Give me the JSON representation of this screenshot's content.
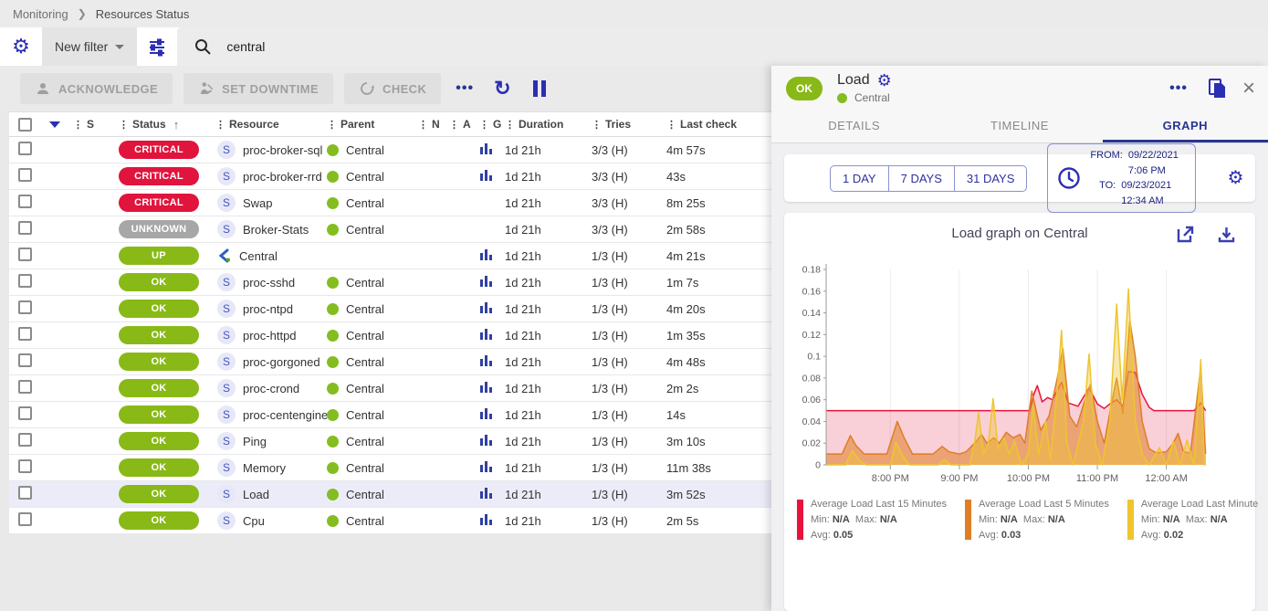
{
  "breadcrumb": {
    "items": [
      "Monitoring",
      "Resources Status"
    ]
  },
  "filter_bar": {
    "new_filter_label": "New filter",
    "search_value": "central",
    "icons": [
      "settings-gear-icon",
      "tune-filter-icon",
      "search-icon"
    ]
  },
  "toolbar": {
    "buttons": [
      {
        "label": "ACKNOWLEDGE",
        "icon": "person-icon"
      },
      {
        "label": "SET DOWNTIME",
        "icon": "downtime-worker-icon"
      },
      {
        "label": "CHECK",
        "icon": "recheck-icon"
      }
    ],
    "more_label": "•••",
    "icons": [
      "more-icon",
      "refresh-icon",
      "pause-icon"
    ]
  },
  "table": {
    "columns": [
      "S",
      "Status",
      "Resource",
      "Parent",
      "N",
      "A",
      "G",
      "Duration",
      "Tries",
      "Last check"
    ],
    "sort_column": "Status",
    "rows": [
      {
        "status": "CRITICAL",
        "severity": "critical",
        "resource": "proc-broker-sql",
        "type": "service",
        "parent": "Central",
        "has_graph": true,
        "duration": "1d 21h",
        "tries": "3/3 (H)",
        "last_check": "4m 57s",
        "selected": false
      },
      {
        "status": "CRITICAL",
        "severity": "critical",
        "resource": "proc-broker-rrd",
        "type": "service",
        "parent": "Central",
        "has_graph": true,
        "duration": "1d 21h",
        "tries": "3/3 (H)",
        "last_check": "43s",
        "selected": false
      },
      {
        "status": "CRITICAL",
        "severity": "critical",
        "resource": "Swap",
        "type": "service",
        "parent": "Central",
        "has_graph": false,
        "duration": "1d 21h",
        "tries": "3/3 (H)",
        "last_check": "8m 25s",
        "selected": false
      },
      {
        "status": "UNKNOWN",
        "severity": "unknown",
        "resource": "Broker-Stats",
        "type": "service",
        "parent": "Central",
        "has_graph": false,
        "duration": "1d 21h",
        "tries": "3/3 (H)",
        "last_check": "2m 58s",
        "selected": false
      },
      {
        "status": "UP",
        "severity": "up",
        "resource": "Central",
        "type": "host",
        "parent": "",
        "has_graph": true,
        "duration": "1d 21h",
        "tries": "1/3 (H)",
        "last_check": "4m 21s",
        "selected": false
      },
      {
        "status": "OK",
        "severity": "ok",
        "resource": "proc-sshd",
        "type": "service",
        "parent": "Central",
        "has_graph": true,
        "duration": "1d 21h",
        "tries": "1/3 (H)",
        "last_check": "1m 7s",
        "selected": false
      },
      {
        "status": "OK",
        "severity": "ok",
        "resource": "proc-ntpd",
        "type": "service",
        "parent": "Central",
        "has_graph": true,
        "duration": "1d 21h",
        "tries": "1/3 (H)",
        "last_check": "4m 20s",
        "selected": false
      },
      {
        "status": "OK",
        "severity": "ok",
        "resource": "proc-httpd",
        "type": "service",
        "parent": "Central",
        "has_graph": true,
        "duration": "1d 21h",
        "tries": "1/3 (H)",
        "last_check": "1m 35s",
        "selected": false
      },
      {
        "status": "OK",
        "severity": "ok",
        "resource": "proc-gorgoned",
        "type": "service",
        "parent": "Central",
        "has_graph": true,
        "duration": "1d 21h",
        "tries": "1/3 (H)",
        "last_check": "4m 48s",
        "selected": false
      },
      {
        "status": "OK",
        "severity": "ok",
        "resource": "proc-crond",
        "type": "service",
        "parent": "Central",
        "has_graph": true,
        "duration": "1d 21h",
        "tries": "1/3 (H)",
        "last_check": "2m 2s",
        "selected": false
      },
      {
        "status": "OK",
        "severity": "ok",
        "resource": "proc-centengine",
        "type": "service",
        "parent": "Central",
        "has_graph": true,
        "duration": "1d 21h",
        "tries": "1/3 (H)",
        "last_check": "14s",
        "selected": false
      },
      {
        "status": "OK",
        "severity": "ok",
        "resource": "Ping",
        "type": "service",
        "parent": "Central",
        "has_graph": true,
        "duration": "1d 21h",
        "tries": "1/3 (H)",
        "last_check": "3m 10s",
        "selected": false
      },
      {
        "status": "OK",
        "severity": "ok",
        "resource": "Memory",
        "type": "service",
        "parent": "Central",
        "has_graph": true,
        "duration": "1d 21h",
        "tries": "1/3 (H)",
        "last_check": "11m 38s",
        "selected": false
      },
      {
        "status": "OK",
        "severity": "ok",
        "resource": "Load",
        "type": "service",
        "parent": "Central",
        "has_graph": true,
        "duration": "1d 21h",
        "tries": "1/3 (H)",
        "last_check": "3m 52s",
        "selected": true
      },
      {
        "status": "OK",
        "severity": "ok",
        "resource": "Cpu",
        "type": "service",
        "parent": "Central",
        "has_graph": true,
        "duration": "1d 21h",
        "tries": "1/3 (H)",
        "last_check": "2m 5s",
        "selected": false
      }
    ]
  },
  "panel": {
    "status": "OK",
    "title": "Load",
    "parent": "Central",
    "tabs": [
      {
        "label": "DETAILS",
        "active": false
      },
      {
        "label": "TIMELINE",
        "active": false
      },
      {
        "label": "GRAPH",
        "active": true
      }
    ],
    "time_range": {
      "presets": [
        "1 DAY",
        "7 DAYS",
        "31 DAYS"
      ],
      "from_label": "FROM:",
      "from_value": "09/22/2021 7:06 PM",
      "to_label": "TO:",
      "to_value": "09/23/2021 12:34 AM"
    },
    "graph_title": "Load graph on Central",
    "icons": [
      "more-icon",
      "copy-icon",
      "close-icon",
      "clock-icon",
      "settings-gear-icon",
      "open-in-new-icon",
      "download-icon"
    ]
  },
  "colors": {
    "accent_indigo": "#2b2eb3",
    "tab_active": "#283593",
    "status_critical": "#e0143c",
    "status_unknown": "#a7a7a7",
    "status_ok": "#88b917",
    "host_up_dot": "#84bd20"
  },
  "chart_data": {
    "type": "area",
    "title": "Load graph on Central",
    "x_ticks": [
      "8:00 PM",
      "9:00 PM",
      "10:00 PM",
      "11:00 PM",
      "12:00 AM"
    ],
    "x_tick_hours": [
      20,
      21,
      22,
      23,
      24
    ],
    "x_range": [
      19.07,
      24.6
    ],
    "ylim": [
      0,
      0.18
    ],
    "y_tick_step": 0.02,
    "grid": true,
    "legend_labels": {
      "min": "Min:",
      "max": "Max:",
      "avg": "Avg:"
    },
    "series": [
      {
        "name": "Average Load Last 15 Minutes",
        "color": "#e8133c",
        "fill": "rgba(232,19,60,0.20)",
        "min": "N/A",
        "max": "N/A",
        "avg": "0.05",
        "points": [
          [
            19.07,
            0.05
          ],
          [
            22.02,
            0.05
          ],
          [
            22.08,
            0.065
          ],
          [
            22.13,
            0.073
          ],
          [
            22.2,
            0.058
          ],
          [
            22.28,
            0.062
          ],
          [
            22.35,
            0.06
          ],
          [
            22.48,
            0.076
          ],
          [
            22.58,
            0.057
          ],
          [
            22.72,
            0.054
          ],
          [
            22.88,
            0.071
          ],
          [
            23.0,
            0.056
          ],
          [
            23.1,
            0.052
          ],
          [
            23.2,
            0.057
          ],
          [
            23.28,
            0.06
          ],
          [
            23.37,
            0.054
          ],
          [
            23.45,
            0.086
          ],
          [
            23.55,
            0.085
          ],
          [
            23.65,
            0.065
          ],
          [
            23.75,
            0.053
          ],
          [
            23.82,
            0.05
          ],
          [
            24.4,
            0.05
          ],
          [
            24.5,
            0.057
          ],
          [
            24.57,
            0.05
          ]
        ]
      },
      {
        "name": "Average Load Last 5 Minutes",
        "color": "#df7e26",
        "fill": "rgba(223,126,38,0.55)",
        "min": "N/A",
        "max": "N/A",
        "avg": "0.03",
        "points": [
          [
            19.07,
            0.01
          ],
          [
            19.3,
            0.01
          ],
          [
            19.42,
            0.027
          ],
          [
            19.5,
            0.018
          ],
          [
            19.62,
            0.01
          ],
          [
            19.95,
            0.01
          ],
          [
            20.1,
            0.04
          ],
          [
            20.2,
            0.025
          ],
          [
            20.32,
            0.01
          ],
          [
            20.62,
            0.01
          ],
          [
            20.75,
            0.017
          ],
          [
            20.85,
            0.012
          ],
          [
            21.0,
            0.01
          ],
          [
            21.1,
            0.012
          ],
          [
            21.25,
            0.022
          ],
          [
            21.32,
            0.028
          ],
          [
            21.4,
            0.02
          ],
          [
            21.5,
            0.025
          ],
          [
            21.58,
            0.02
          ],
          [
            21.68,
            0.03
          ],
          [
            21.78,
            0.025
          ],
          [
            21.88,
            0.028
          ],
          [
            21.95,
            0.02
          ],
          [
            22.05,
            0.068
          ],
          [
            22.12,
            0.048
          ],
          [
            22.18,
            0.032
          ],
          [
            22.3,
            0.045
          ],
          [
            22.42,
            0.08
          ],
          [
            22.5,
            0.107
          ],
          [
            22.6,
            0.045
          ],
          [
            22.7,
            0.035
          ],
          [
            22.82,
            0.06
          ],
          [
            22.9,
            0.074
          ],
          [
            23.0,
            0.04
          ],
          [
            23.1,
            0.02
          ],
          [
            23.2,
            0.055
          ],
          [
            23.28,
            0.08
          ],
          [
            23.37,
            0.047
          ],
          [
            23.47,
            0.133
          ],
          [
            23.55,
            0.1
          ],
          [
            23.65,
            0.04
          ],
          [
            23.75,
            0.015
          ],
          [
            23.85,
            0.011
          ],
          [
            24.0,
            0.012
          ],
          [
            24.1,
            0.02
          ],
          [
            24.17,
            0.029
          ],
          [
            24.25,
            0.012
          ],
          [
            24.35,
            0.011
          ],
          [
            24.5,
            0.09
          ],
          [
            24.55,
            0.03
          ],
          [
            24.57,
            0.01
          ]
        ]
      },
      {
        "name": "Average Load Last Minute",
        "color": "#eec52e",
        "fill": "rgba(238,197,46,0.40)",
        "min": "N/A",
        "max": "N/A",
        "avg": "0.02",
        "points": [
          [
            19.07,
            0
          ],
          [
            19.35,
            0
          ],
          [
            19.45,
            0.013
          ],
          [
            19.55,
            0.004
          ],
          [
            19.65,
            0
          ],
          [
            20.0,
            0
          ],
          [
            20.08,
            0.021
          ],
          [
            20.18,
            0.008
          ],
          [
            20.28,
            0
          ],
          [
            20.7,
            0
          ],
          [
            20.78,
            0.005
          ],
          [
            20.88,
            0
          ],
          [
            21.15,
            0
          ],
          [
            21.22,
            0.02
          ],
          [
            21.28,
            0.048
          ],
          [
            21.35,
            0.01
          ],
          [
            21.42,
            0.02
          ],
          [
            21.49,
            0.061
          ],
          [
            21.56,
            0.015
          ],
          [
            21.65,
            0.025
          ],
          [
            21.72,
            0.01
          ],
          [
            21.8,
            0.022
          ],
          [
            21.9,
            0
          ],
          [
            22.0,
            0.01
          ],
          [
            22.07,
            0.055
          ],
          [
            22.15,
            0.01
          ],
          [
            22.25,
            0.04
          ],
          [
            22.32,
            0.005
          ],
          [
            22.42,
            0.07
          ],
          [
            22.48,
            0.124
          ],
          [
            22.56,
            0.02
          ],
          [
            22.65,
            0
          ],
          [
            22.8,
            0.04
          ],
          [
            22.88,
            0.102
          ],
          [
            22.97,
            0.02
          ],
          [
            23.07,
            0
          ],
          [
            23.18,
            0.04
          ],
          [
            23.28,
            0.148
          ],
          [
            23.36,
            0.06
          ],
          [
            23.45,
            0.162
          ],
          [
            23.55,
            0.04
          ],
          [
            23.65,
            0.01
          ],
          [
            23.75,
            0
          ],
          [
            23.9,
            0.016
          ],
          [
            24.0,
            0
          ],
          [
            24.1,
            0.022
          ],
          [
            24.2,
            0
          ],
          [
            24.3,
            0.023
          ],
          [
            24.4,
            0
          ],
          [
            24.5,
            0.097
          ],
          [
            24.55,
            0
          ],
          [
            24.57,
            0
          ]
        ]
      }
    ]
  }
}
